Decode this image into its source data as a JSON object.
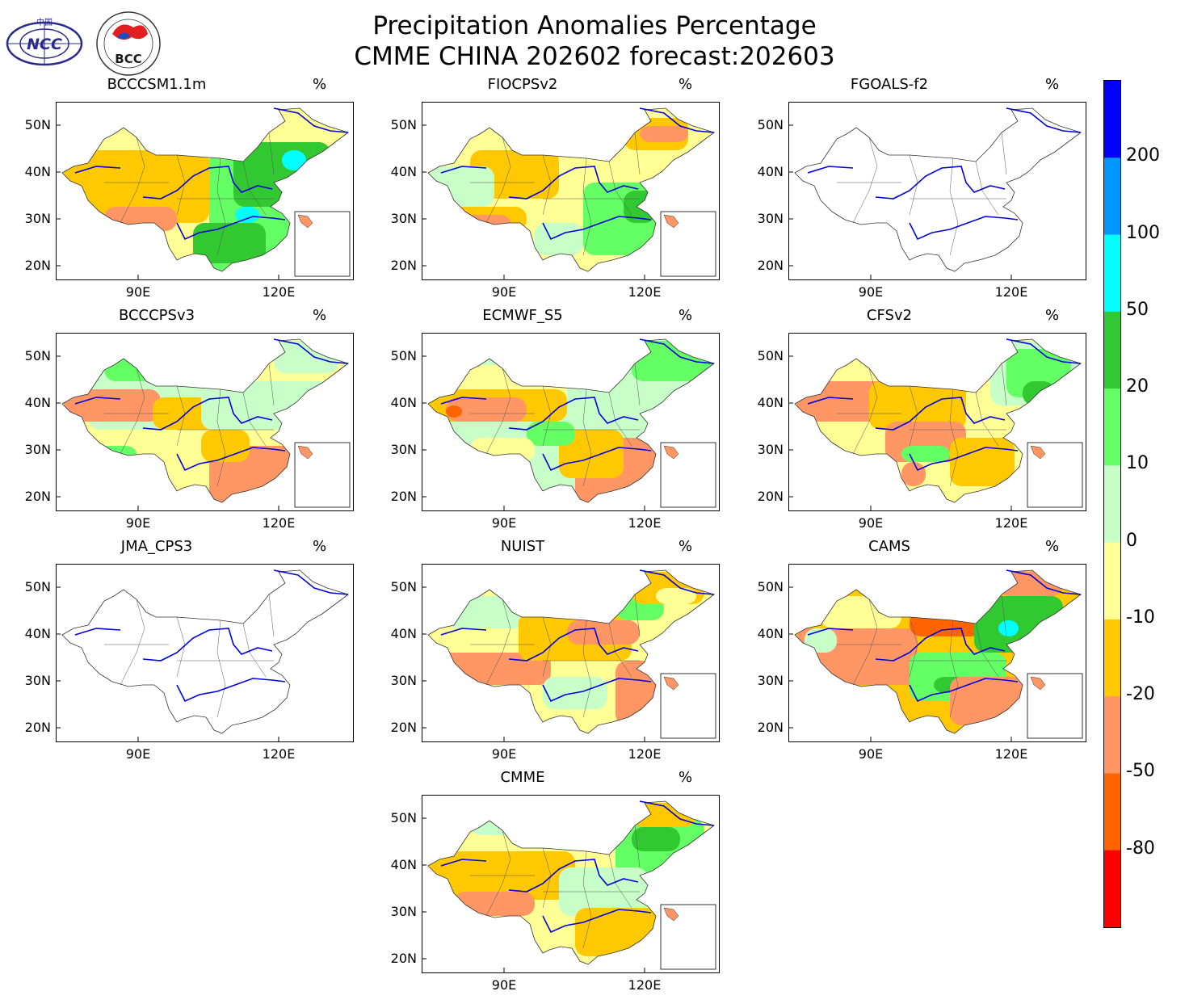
{
  "figure": {
    "title_line1": "Precipitation Anomalies Percentage",
    "title_line2": "CMME CHINA 202602 forecast:202603",
    "logo_left_text": "NCC",
    "logo_left_small": "中国",
    "logo_right_text": "BCC",
    "logo_right_ring": "BEIJING CLIMATE CENTER"
  },
  "chart_data": {
    "type": "heatmap",
    "description_type": "multi-panel map",
    "unit": "%",
    "lat_ticks": [
      "50N",
      "40N",
      "30N",
      "20N"
    ],
    "lon_ticks": [
      "90E",
      "120E"
    ],
    "panels": [
      {
        "name": "BCCCSM1.1m",
        "unit": "%",
        "pattern": "dry-west-wet-east"
      },
      {
        "name": "FIOCPSv2",
        "unit": "%",
        "pattern": "mixed"
      },
      {
        "name": "FGOALS-f2",
        "unit": "%",
        "pattern": "empty"
      },
      {
        "name": "BCCCPSv3",
        "unit": "%",
        "pattern": "mixed-dry-south"
      },
      {
        "name": "ECMWF_S5",
        "unit": "%",
        "pattern": "dry-south"
      },
      {
        "name": "CFSv2",
        "unit": "%",
        "pattern": "dry-west"
      },
      {
        "name": "JMA_CPS3",
        "unit": "%",
        "pattern": "empty"
      },
      {
        "name": "NUIST",
        "unit": "%",
        "pattern": "dry-south-east"
      },
      {
        "name": "CAMS",
        "unit": "%",
        "pattern": "dry-west-wet-northeast"
      },
      {
        "name": "CMME",
        "unit": "%",
        "pattern": "dry-west-wet-northeast-light"
      }
    ],
    "colorbar": {
      "levels": [
        "200",
        "100",
        "50",
        "20",
        "10",
        "0",
        "-10",
        "-20",
        "-50",
        "-80"
      ],
      "colors": [
        "#0000ff",
        "#0096ff",
        "#00ffff",
        "#32c832",
        "#64ff64",
        "#c8ffc8",
        "#ffff96",
        "#ffc800",
        "#ff9664",
        "#ff6400",
        "#ff0000"
      ]
    }
  }
}
